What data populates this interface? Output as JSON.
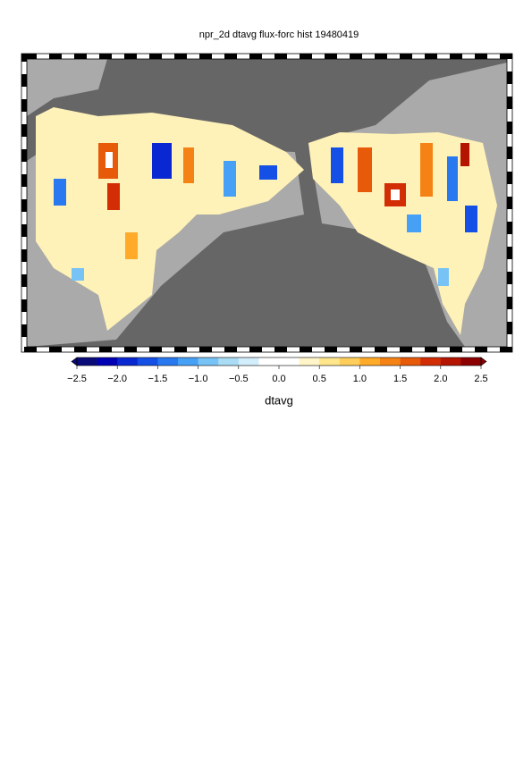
{
  "title": "npr_2d dtavg flux-forc hist 19480419",
  "colorbar": {
    "label": "dtavg",
    "vmin": -2.5,
    "vmax": 2.5,
    "colors": [
      "#0a0a78",
      "#0000b4",
      "#0a28d2",
      "#1450e6",
      "#2878f0",
      "#46a0f5",
      "#78c3f5",
      "#aadcf5",
      "#d2eefa",
      "#ffffff",
      "#ffffff",
      "#fff5c8",
      "#ffe68c",
      "#ffcd5a",
      "#ffaa28",
      "#f58214",
      "#e65a0a",
      "#d22d05",
      "#b41400",
      "#8c0000"
    ],
    "ticks": [
      {
        "value": -2.5,
        "label": "−2.5"
      },
      {
        "value": -2.0,
        "label": "−2.0"
      },
      {
        "value": -1.5,
        "label": "−1.5"
      },
      {
        "value": -1.0,
        "label": "−1.0"
      },
      {
        "value": -0.5,
        "label": "−0.5"
      },
      {
        "value": 0.0,
        "label": "0.0"
      },
      {
        "value": 0.5,
        "label": "0.5"
      },
      {
        "value": 1.0,
        "label": "1.0"
      },
      {
        "value": 1.5,
        "label": "1.5"
      },
      {
        "value": 2.0,
        "label": "2.0"
      },
      {
        "value": 2.5,
        "label": "2.5"
      }
    ]
  }
}
